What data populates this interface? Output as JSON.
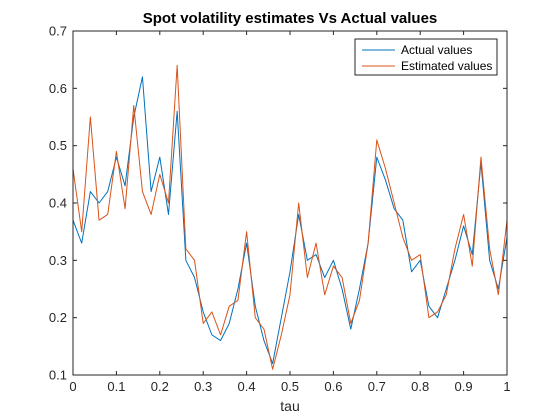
{
  "chart_data": {
    "type": "line",
    "title": "Spot volatility estimates Vs Actual values",
    "xlabel": "tau",
    "ylabel": "",
    "xlim": [
      0,
      1
    ],
    "ylim": [
      0.1,
      0.7
    ],
    "xticks": [
      "0",
      "0.1",
      "0.2",
      "0.3",
      "0.4",
      "0.5",
      "0.6",
      "0.7",
      "0.8",
      "0.9",
      "1"
    ],
    "yticks": [
      "0.1",
      "0.2",
      "0.3",
      "0.4",
      "0.5",
      "0.6",
      "0.7"
    ],
    "grid": false,
    "legend_position": "top-right",
    "x": [
      0,
      0.02,
      0.04,
      0.06,
      0.08,
      0.1,
      0.12,
      0.14,
      0.16,
      0.18,
      0.2,
      0.22,
      0.24,
      0.26,
      0.28,
      0.3,
      0.32,
      0.34,
      0.36,
      0.38,
      0.4,
      0.42,
      0.44,
      0.46,
      0.48,
      0.5,
      0.52,
      0.54,
      0.56,
      0.58,
      0.6,
      0.62,
      0.64,
      0.66,
      0.68,
      0.7,
      0.72,
      0.74,
      0.76,
      0.78,
      0.8,
      0.82,
      0.84,
      0.86,
      0.88,
      0.9,
      0.92,
      0.94,
      0.96,
      0.98,
      1
    ],
    "series": [
      {
        "name": "Actual values",
        "color": "#0072BD",
        "values": [
          0.37,
          0.33,
          0.42,
          0.4,
          0.42,
          0.48,
          0.43,
          0.55,
          0.62,
          0.42,
          0.48,
          0.38,
          0.56,
          0.3,
          0.27,
          0.21,
          0.17,
          0.16,
          0.19,
          0.25,
          0.33,
          0.22,
          0.16,
          0.12,
          0.2,
          0.28,
          0.38,
          0.3,
          0.31,
          0.27,
          0.3,
          0.25,
          0.18,
          0.25,
          0.33,
          0.48,
          0.44,
          0.39,
          0.37,
          0.28,
          0.3,
          0.22,
          0.2,
          0.25,
          0.3,
          0.36,
          0.31,
          0.47,
          0.3,
          0.25,
          0.34
        ]
      },
      {
        "name": "Estimated values",
        "color": "#D95319",
        "values": [
          0.46,
          0.35,
          0.55,
          0.37,
          0.38,
          0.49,
          0.39,
          0.57,
          0.42,
          0.38,
          0.45,
          0.4,
          0.64,
          0.32,
          0.3,
          0.19,
          0.21,
          0.17,
          0.22,
          0.23,
          0.35,
          0.2,
          0.18,
          0.11,
          0.17,
          0.24,
          0.4,
          0.27,
          0.33,
          0.24,
          0.29,
          0.27,
          0.19,
          0.23,
          0.33,
          0.51,
          0.46,
          0.4,
          0.34,
          0.3,
          0.31,
          0.2,
          0.21,
          0.24,
          0.32,
          0.38,
          0.29,
          0.48,
          0.32,
          0.24,
          0.37
        ]
      }
    ]
  }
}
